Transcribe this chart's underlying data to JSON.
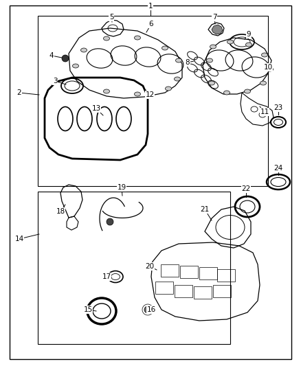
{
  "background_color": "#ffffff",
  "line_color": "#000000",
  "text_color": "#000000",
  "font_size": 7.5
}
